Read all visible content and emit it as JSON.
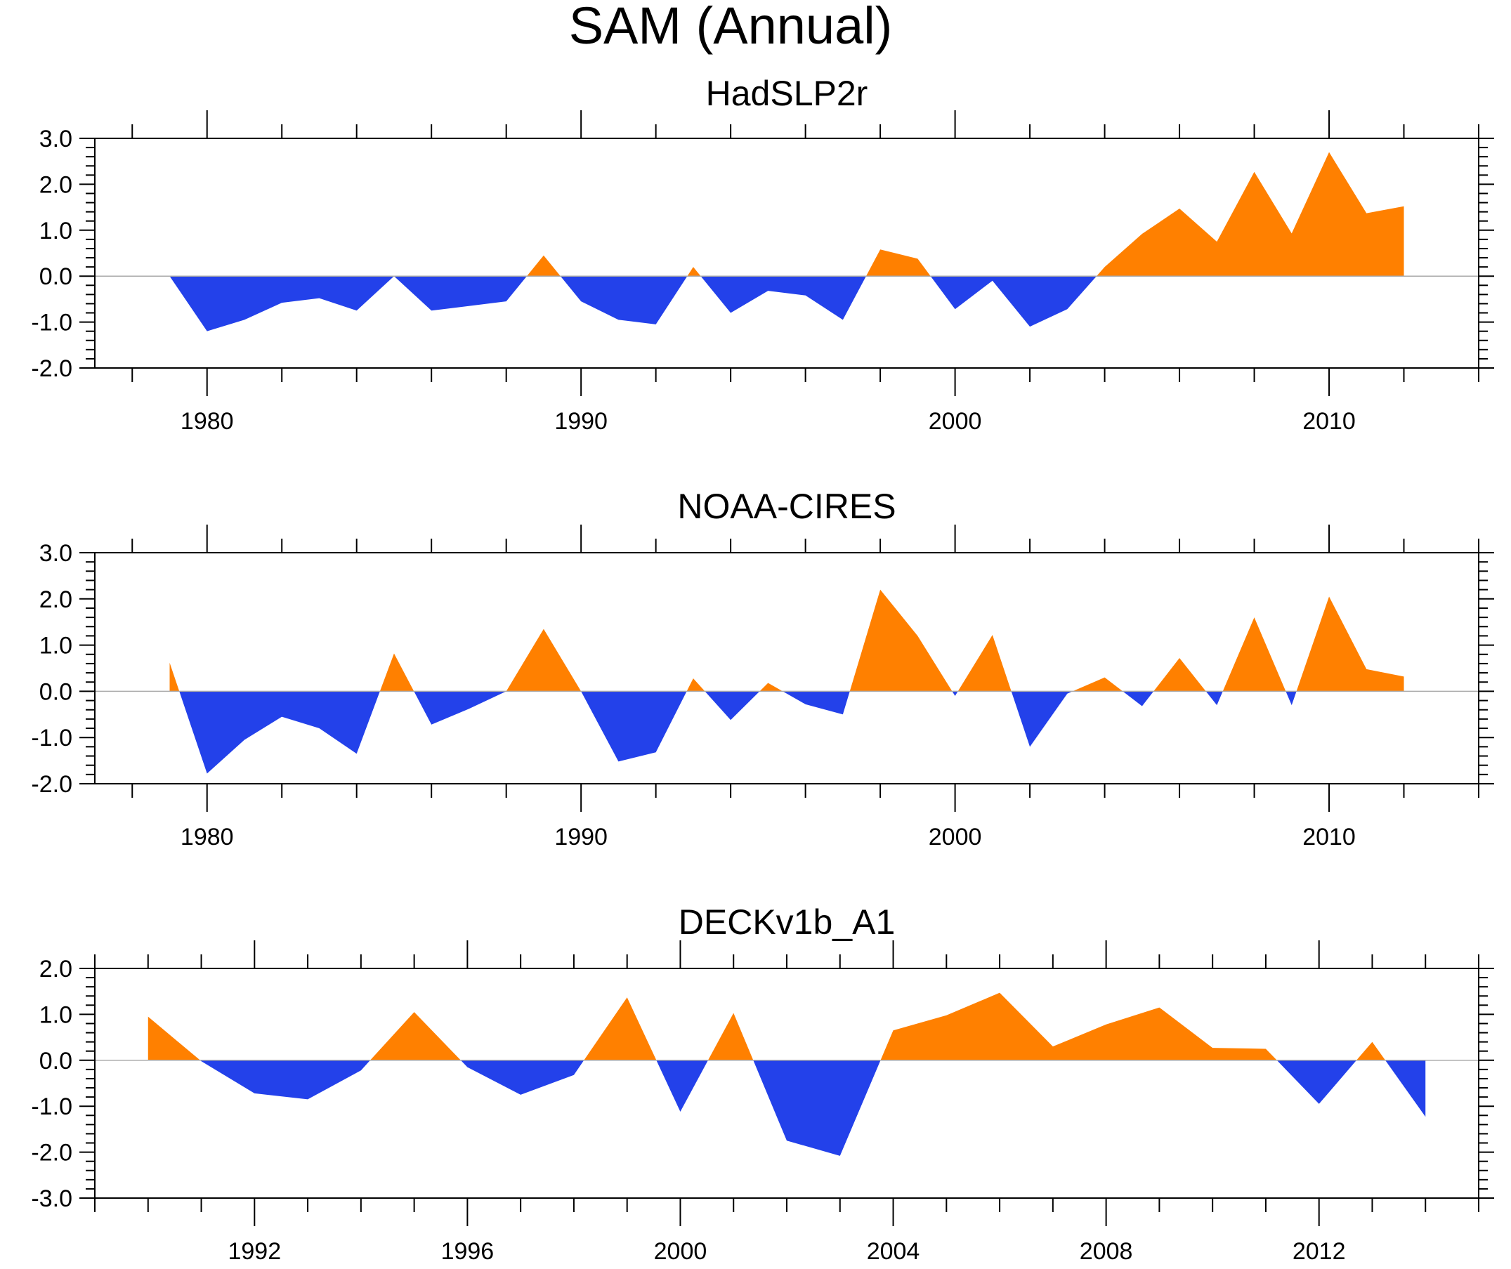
{
  "title": "SAM (Annual)",
  "colors": {
    "positive": "#ff8000",
    "negative": "#2341ea",
    "zero_line": "#aaaaaa"
  },
  "chart_data": [
    {
      "type": "area",
      "title": "HadSLP2r",
      "xlim": [
        1977,
        2014
      ],
      "ylim": [
        -2,
        3
      ],
      "xticks": [
        1980,
        1990,
        2000,
        2010
      ],
      "xtick_labels": [
        "1980",
        "1990",
        "2000",
        "2010"
      ],
      "yticks": [
        -2,
        -1,
        0,
        1,
        2,
        3
      ],
      "ytick_labels": [
        "-2.0",
        "-1.0",
        "0.0",
        "1.0",
        "2.0",
        "3.0"
      ],
      "minor_x_step": 2,
      "minor_y_step": 0.2,
      "x": [
        1979,
        1980,
        1981,
        1982,
        1983,
        1984,
        1985,
        1986,
        1987,
        1988,
        1989,
        1990,
        1991,
        1992,
        1993,
        1994,
        1995,
        1996,
        1997,
        1998,
        1999,
        2000,
        2001,
        2002,
        2003,
        2004,
        2005,
        2006,
        2007,
        2008,
        2009,
        2010,
        2011,
        2012
      ],
      "values": [
        0.0,
        -1.2,
        -0.95,
        -0.58,
        -0.48,
        -0.75,
        0.0,
        -0.75,
        -0.65,
        -0.55,
        0.45,
        -0.55,
        -0.95,
        -1.05,
        0.2,
        -0.8,
        -0.32,
        -0.42,
        -0.95,
        0.58,
        0.38,
        -0.72,
        -0.1,
        -1.1,
        -0.72,
        0.2,
        0.92,
        1.47,
        0.75,
        2.27,
        0.93,
        2.7,
        1.37,
        1.52
      ]
    },
    {
      "type": "area",
      "title": "NOAA-CIRES",
      "xlim": [
        1977,
        2014
      ],
      "ylim": [
        -2,
        3
      ],
      "xticks": [
        1980,
        1990,
        2000,
        2010
      ],
      "xtick_labels": [
        "1980",
        "1990",
        "2000",
        "2010"
      ],
      "yticks": [
        -2,
        -1,
        0,
        1,
        2,
        3
      ],
      "ytick_labels": [
        "-2.0",
        "-1.0",
        "0.0",
        "1.0",
        "2.0",
        "3.0"
      ],
      "minor_x_step": 2,
      "minor_y_step": 0.2,
      "x": [
        1979,
        1980,
        1981,
        1982,
        1983,
        1984,
        1985,
        1986,
        1987,
        1988,
        1989,
        1990,
        1991,
        1992,
        1993,
        1994,
        1995,
        1996,
        1997,
        1998,
        1999,
        2000,
        2001,
        2002,
        2003,
        2004,
        2005,
        2006,
        2007,
        2008,
        2009,
        2010,
        2011,
        2012
      ],
      "values": [
        0.62,
        -1.78,
        -1.05,
        -0.55,
        -0.8,
        -1.35,
        0.82,
        -0.72,
        -0.38,
        0.0,
        1.35,
        0.0,
        -1.52,
        -1.32,
        0.28,
        -0.62,
        0.18,
        -0.28,
        -0.5,
        2.2,
        1.2,
        -0.1,
        1.22,
        -1.2,
        -0.05,
        0.3,
        -0.32,
        0.72,
        -0.3,
        1.6,
        -0.3,
        2.05,
        0.48,
        0.32
      ]
    },
    {
      "type": "area",
      "title": "DECKv1b_A1",
      "xlim": [
        1989,
        2015
      ],
      "ylim": [
        -3,
        2
      ],
      "xticks": [
        1992,
        1996,
        2000,
        2004,
        2008,
        2012
      ],
      "xtick_labels": [
        "1992",
        "1996",
        "2000",
        "2004",
        "2008",
        "2012"
      ],
      "yticks": [
        -3,
        -2,
        -1,
        0,
        1,
        2
      ],
      "ytick_labels": [
        "-3.0",
        "-2.0",
        "-1.0",
        "0.0",
        "1.0",
        "2.0"
      ],
      "minor_x_step": 1,
      "minor_y_step": 0.2,
      "x": [
        1990,
        1991,
        1992,
        1993,
        1994,
        1995,
        1996,
        1997,
        1998,
        1999,
        2000,
        2001,
        2002,
        2003,
        2004,
        2005,
        2006,
        2007,
        2008,
        2009,
        2010,
        2011,
        2012,
        2013,
        2014
      ],
      "values": [
        0.95,
        -0.02,
        -0.72,
        -0.85,
        -0.22,
        1.05,
        -0.15,
        -0.75,
        -0.32,
        1.37,
        -1.12,
        1.03,
        -1.75,
        -2.08,
        0.65,
        0.98,
        1.47,
        0.3,
        0.78,
        1.15,
        0.27,
        0.25,
        -0.95,
        0.4,
        -1.23
      ]
    }
  ]
}
